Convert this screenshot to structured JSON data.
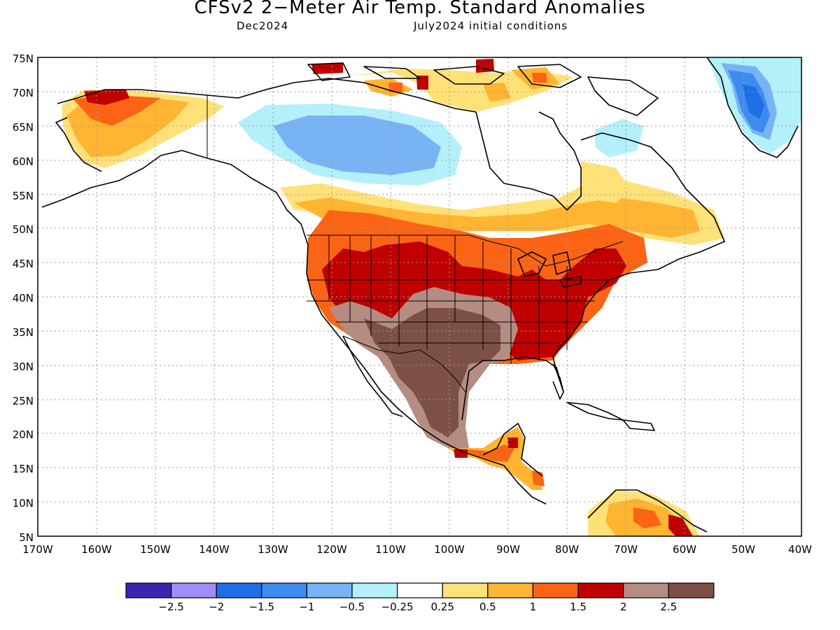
{
  "title": "CFSv2 2−Meter Air Temp. Standard Anomalies",
  "subtitle_left": "Dec2024",
  "subtitle_right": "July2024 initial conditions",
  "lat_labels": [
    "75N",
    "70N",
    "65N",
    "60N",
    "55N",
    "50N",
    "45N",
    "40N",
    "35N",
    "30N",
    "25N",
    "20N",
    "15N",
    "10N",
    "5N"
  ],
  "lon_labels": [
    "170W",
    "160W",
    "150W",
    "140W",
    "130W",
    "120W",
    "110W",
    "100W",
    "90W",
    "80W",
    "70W",
    "60W",
    "50W",
    "40W"
  ],
  "colorbar": {
    "colors": [
      "#3b24b0",
      "#a08cf5",
      "#1e6ee6",
      "#3c8cf0",
      "#78b4f5",
      "#b4f0fa",
      "#ffffff",
      "#ffe178",
      "#ffb432",
      "#fa6414",
      "#c00000",
      "#b48c82",
      "#7d5046"
    ],
    "labels": [
      "−2.5",
      "−2",
      "−1.5",
      "−1",
      "−0.5",
      "−0.25",
      "0.25",
      "0.5",
      "1",
      "1.5",
      "2",
      "2.5"
    ]
  },
  "palette": {
    "very_cold": "#1e6ee6",
    "cold": "#3c8cf0",
    "cool": "#78b4f5",
    "cool_light": "#b4f0fa",
    "warm_light": "#ffe178",
    "warm": "#ffb432",
    "warmer": "#fa6414",
    "hot": "#c00000",
    "very_hot": "#b48c82",
    "extreme": "#7d5046"
  },
  "coastline_color": "#000000",
  "grid_color": "#9a9a9a"
}
